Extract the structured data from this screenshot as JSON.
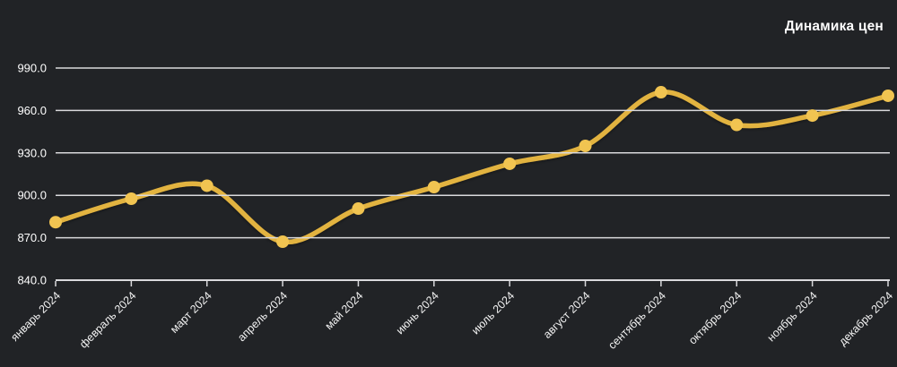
{
  "title": "Динамика цен",
  "colors": {
    "background": "#212326",
    "line": "#E2B33F",
    "marker": "#F1C451",
    "grid": "#D9D9DC",
    "axis": "#D9D9DC",
    "ylabel_text": "#FFFFFF",
    "xlabel_text": "#F2F2F2",
    "title_text": "#FFFFFF"
  },
  "chart_data": {
    "type": "line",
    "title": "Динамика цен",
    "categories": [
      "январь 2024",
      "февраль 2024",
      "март 2024",
      "апрель 2024",
      "май 2024",
      "июнь 2024",
      "июль 2024",
      "август 2024",
      "сентябрь 2024",
      "октябрь 2024",
      "ноябрь 2024",
      "декабрь 2024"
    ],
    "values": [
      881.0,
      897.6,
      906.8,
      867.2,
      890.6,
      905.8,
      922.3,
      934.9,
      972.9,
      949.8,
      956.4,
      970.4
    ],
    "xlabel": "",
    "ylabel": "",
    "ylim": [
      840,
      990
    ],
    "yticks": [
      840,
      870,
      900,
      930,
      960,
      990
    ],
    "ytick_labels": [
      "840.0",
      "870.0",
      "900.0",
      "930.0",
      "960.0",
      "990.0"
    ],
    "grid": true,
    "legend": false,
    "smooth": true,
    "marker": "circle"
  }
}
